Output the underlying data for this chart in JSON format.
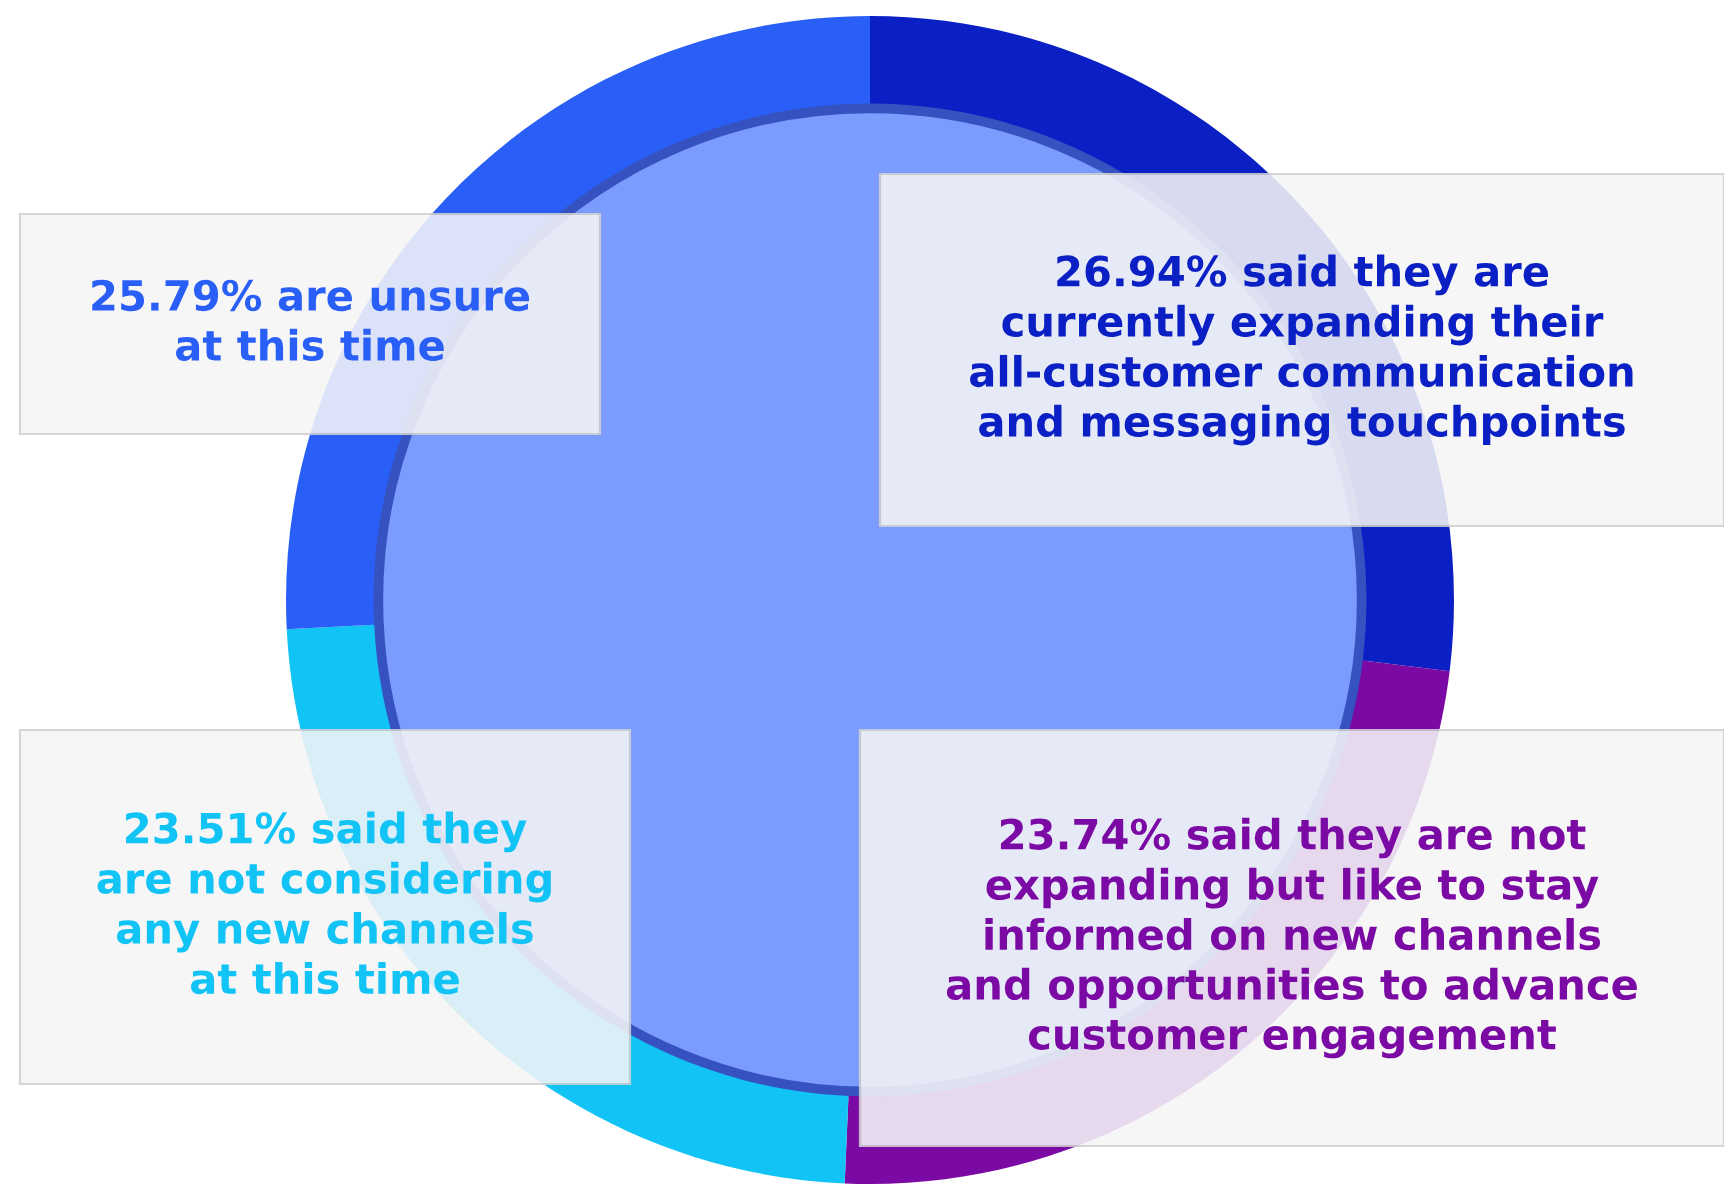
{
  "chart_data": {
    "type": "donut",
    "categories": [
      null,
      null,
      null,
      null
    ],
    "values": [
      26.94,
      23.74,
      23.51,
      25.79
    ],
    "colors": [
      "#0a1fc4",
      "#7b0aa5",
      "#12c3f6",
      "#2a5ff7"
    ],
    "value_labels": [
      "26.94% said they are\ncurrently expanding their\nall-customer communication\nand messaging touchpoints",
      "23.74% said they are not\nexpanding but like to stay\ninformed on new channels\nand opportunities to advance\ncustomer engagement",
      "23.51% said they\nare not considering\nany new channels\nat this time",
      "25.79% are unsure\nat this time"
    ],
    "legend": false
  }
}
